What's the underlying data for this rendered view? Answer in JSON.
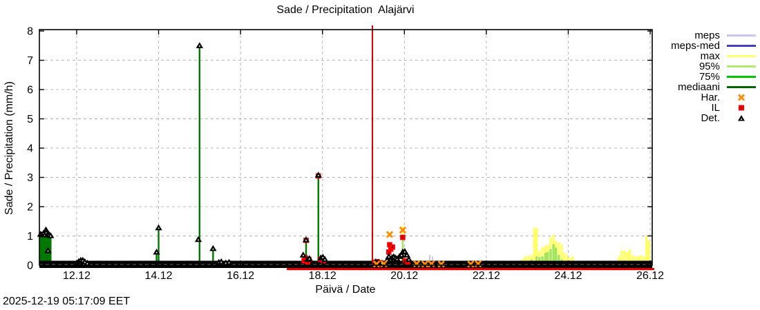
{
  "title": "Sade / Precipitation  Alajärvi",
  "ylabel": "Sade / Precipitation (mm/h)",
  "xlabel": "Päivä / Date",
  "timestamp": "2025-12-19 05:17:09 EET",
  "legend": [
    {
      "label": "meps",
      "type": "line",
      "color": "#c8c8f0"
    },
    {
      "label": "meps-med",
      "type": "line",
      "color": "#4040c0"
    },
    {
      "label": "max",
      "type": "line",
      "color": "#ffff66"
    },
    {
      "label": "95%",
      "type": "line",
      "color": "#b0ec6a"
    },
    {
      "label": "75%",
      "type": "line",
      "color": "#00c800"
    },
    {
      "label": "mediaani",
      "type": "line",
      "color": "#006400"
    },
    {
      "label": "Har.",
      "type": "point",
      "marker": "x-cross",
      "color": "#ff8c00"
    },
    {
      "label": "IL",
      "type": "point",
      "marker": "square",
      "color": "#ff0000"
    },
    {
      "label": "Det.",
      "type": "point",
      "marker": "triangle",
      "color": "#000000"
    }
  ],
  "chart_data": {
    "type": "mixed",
    "x_domain": [
      11.09,
      26.05
    ],
    "y_domain": [
      0,
      8
    ],
    "x_ticks": [
      {
        "v": 12,
        "label": "12.12"
      },
      {
        "v": 14,
        "label": "14.12"
      },
      {
        "v": 16,
        "label": "16.12"
      },
      {
        "v": 18,
        "label": "18.12"
      },
      {
        "v": 20,
        "label": "20.12"
      },
      {
        "v": 22,
        "label": "22.12"
      },
      {
        "v": 24,
        "label": "24.12"
      },
      {
        "v": 26,
        "label": "26.12"
      }
    ],
    "y_ticks": [
      0,
      1,
      2,
      3,
      4,
      5,
      6,
      7,
      8
    ],
    "grid_color": "#b8b8b8",
    "now_line": {
      "x": 19.22,
      "color": "#cc0000"
    },
    "det_zero_band": {
      "from": 11.09,
      "to": 26.05
    },
    "red_zero_line": {
      "from": 17.13,
      "to": 26.1,
      "color": "#e60000"
    },
    "green_impulses": {
      "color": "#007800",
      "points": [
        [
          11.12,
          1.02
        ],
        [
          11.155,
          1.0
        ],
        [
          11.19,
          1.05
        ],
        [
          11.225,
          1.0
        ],
        [
          11.26,
          1.08
        ],
        [
          11.295,
          1.02
        ],
        [
          11.33,
          1.0
        ],
        [
          11.365,
          0.97
        ],
        [
          12.18,
          0.07
        ],
        [
          13.95,
          0.42
        ],
        [
          14.0,
          1.25
        ],
        [
          15.0,
          7.5
        ],
        [
          15.33,
          0.55
        ],
        [
          17.6,
          0.85
        ],
        [
          17.9,
          3.05
        ],
        [
          19.96,
          0.55
        ]
      ]
    },
    "yellow_impulses": {
      "color": "#ffff55",
      "points": [
        [
          19.96,
          1.35
        ]
      ]
    },
    "p95_impulses": {
      "color": "#a0e45c",
      "points": [
        [
          19.96,
          0.88
        ]
      ]
    },
    "meps_impulses": {
      "color": "#c8c8f0",
      "points": [
        [
          20.42,
          0.17
        ],
        [
          20.62,
          0.35
        ],
        [
          20.69,
          0.3
        ]
      ]
    },
    "max_bars": {
      "color": "#ffff66",
      "points": [
        [
          22.69,
          0.12
        ],
        [
          22.76,
          0.15
        ],
        [
          22.83,
          0.18
        ],
        [
          22.9,
          0.22
        ],
        [
          22.96,
          0.31
        ],
        [
          23.03,
          0.31
        ],
        [
          23.1,
          0.36
        ],
        [
          23.17,
          1.27
        ],
        [
          23.23,
          1.27
        ],
        [
          23.3,
          0.5
        ],
        [
          23.37,
          0.62
        ],
        [
          23.44,
          0.66
        ],
        [
          23.5,
          0.7
        ],
        [
          23.57,
          0.95
        ],
        [
          23.64,
          1.05
        ],
        [
          23.7,
          0.82
        ],
        [
          23.77,
          0.78
        ],
        [
          23.84,
          0.72
        ],
        [
          23.9,
          0.42
        ],
        [
          23.97,
          0.38
        ],
        [
          24.04,
          0.25
        ],
        [
          24.11,
          0.3
        ],
        [
          24.17,
          0.12
        ],
        [
          24.3,
          0.1
        ],
        [
          24.38,
          0.08
        ],
        [
          24.67,
          0.05
        ],
        [
          24.73,
          0.06
        ],
        [
          24.8,
          0.07
        ],
        [
          24.87,
          0.08
        ],
        [
          24.94,
          0.1
        ],
        [
          25.0,
          0.1
        ],
        [
          25.07,
          0.12
        ],
        [
          25.14,
          0.15
        ],
        [
          25.24,
          0.3
        ],
        [
          25.3,
          0.5
        ],
        [
          25.37,
          0.5
        ],
        [
          25.44,
          0.45
        ],
        [
          25.5,
          0.55
        ],
        [
          25.57,
          0.35
        ],
        [
          25.64,
          0.3
        ],
        [
          25.71,
          0.3
        ],
        [
          25.77,
          0.35
        ],
        [
          25.84,
          0.3
        ],
        [
          25.91,
          1.0
        ],
        [
          25.97,
          0.85
        ]
      ]
    },
    "p95_bars": {
      "color": "#a0e45c",
      "points": [
        [
          23.03,
          0.15
        ],
        [
          23.1,
          0.2
        ],
        [
          23.23,
          0.3
        ],
        [
          23.3,
          0.28
        ],
        [
          23.37,
          0.3
        ],
        [
          23.44,
          0.42
        ],
        [
          23.5,
          0.45
        ],
        [
          23.57,
          0.55
        ],
        [
          23.64,
          0.72
        ],
        [
          23.7,
          0.6
        ],
        [
          23.77,
          0.35
        ],
        [
          23.84,
          0.2
        ],
        [
          23.9,
          0.15
        ]
      ]
    },
    "red_areas": {
      "color": "#ff0000",
      "segments": [
        [
          17.45,
          17.75,
          0.07
        ],
        [
          17.85,
          18.12,
          0.06
        ],
        [
          19.25,
          19.47,
          0.1
        ],
        [
          19.55,
          19.8,
          0.1
        ],
        [
          20.15,
          20.35,
          0.08
        ],
        [
          20.35,
          20.75,
          0.13
        ],
        [
          20.75,
          21.0,
          0.07
        ],
        [
          21.0,
          21.15,
          0.04
        ]
      ]
    },
    "il_points": {
      "color": "#ff0000",
      "points": [
        [
          17.55,
          0.15
        ],
        [
          17.57,
          0.27
        ],
        [
          17.6,
          0.85
        ],
        [
          17.64,
          0.1
        ],
        [
          17.67,
          0.2
        ],
        [
          17.9,
          3.05
        ],
        [
          17.95,
          0.2
        ],
        [
          18.02,
          0.15
        ],
        [
          19.28,
          0.1
        ],
        [
          19.34,
          0.12
        ],
        [
          19.42,
          0.08
        ],
        [
          19.62,
          0.45
        ],
        [
          19.64,
          0.7
        ],
        [
          19.67,
          0.55
        ],
        [
          19.71,
          0.62
        ],
        [
          19.96,
          0.95
        ],
        [
          20.02,
          0.15
        ],
        [
          20.08,
          0.1
        ]
      ]
    },
    "har_points": {
      "color": "#ff8c00",
      "points": [
        [
          19.64,
          1.05
        ],
        [
          19.96,
          1.2
        ],
        [
          19.32,
          0.04
        ],
        [
          19.5,
          0.05
        ],
        [
          20.3,
          0.05
        ],
        [
          20.5,
          0.04
        ],
        [
          20.66,
          0.05
        ],
        [
          20.9,
          0.04
        ],
        [
          21.62,
          0.04
        ],
        [
          21.8,
          0.05
        ]
      ]
    },
    "det_points": {
      "color": "#000000",
      "points": [
        [
          11.12,
          1.06
        ],
        [
          11.155,
          1.04
        ],
        [
          11.19,
          1.09
        ],
        [
          11.225,
          1.04
        ],
        [
          11.25,
          1.21
        ],
        [
          11.26,
          1.12
        ],
        [
          11.295,
          1.06
        ],
        [
          11.33,
          1.04
        ],
        [
          11.3,
          0.5
        ],
        [
          11.365,
          1.01
        ],
        [
          12.0,
          0.08
        ],
        [
          12.05,
          0.13
        ],
        [
          12.1,
          0.17
        ],
        [
          12.15,
          0.17
        ],
        [
          12.2,
          0.12
        ],
        [
          12.26,
          0.07
        ],
        [
          13.95,
          0.45
        ],
        [
          14.0,
          1.28
        ],
        [
          14.97,
          0.88
        ],
        [
          15.0,
          7.5
        ],
        [
          15.33,
          0.57
        ],
        [
          15.47,
          0.1
        ],
        [
          15.53,
          0.12
        ],
        [
          15.64,
          0.08
        ],
        [
          15.72,
          0.1
        ],
        [
          17.53,
          0.35
        ],
        [
          17.6,
          0.87
        ],
        [
          17.64,
          0.2
        ],
        [
          17.68,
          0.23
        ],
        [
          17.9,
          3.08
        ],
        [
          17.96,
          0.25
        ],
        [
          18.01,
          0.28
        ],
        [
          18.06,
          0.2
        ],
        [
          19.3,
          0.12
        ],
        [
          19.36,
          0.1
        ],
        [
          19.45,
          0.08
        ],
        [
          19.58,
          0.18
        ],
        [
          19.62,
          0.3
        ],
        [
          19.66,
          0.2
        ],
        [
          19.7,
          0.26
        ],
        [
          19.74,
          0.29
        ],
        [
          19.78,
          0.25
        ],
        [
          19.82,
          0.22
        ],
        [
          19.88,
          0.3
        ],
        [
          19.93,
          0.35
        ],
        [
          19.96,
          0.45
        ],
        [
          20.01,
          0.47
        ],
        [
          20.06,
          0.35
        ],
        [
          20.11,
          0.2
        ]
      ]
    }
  }
}
